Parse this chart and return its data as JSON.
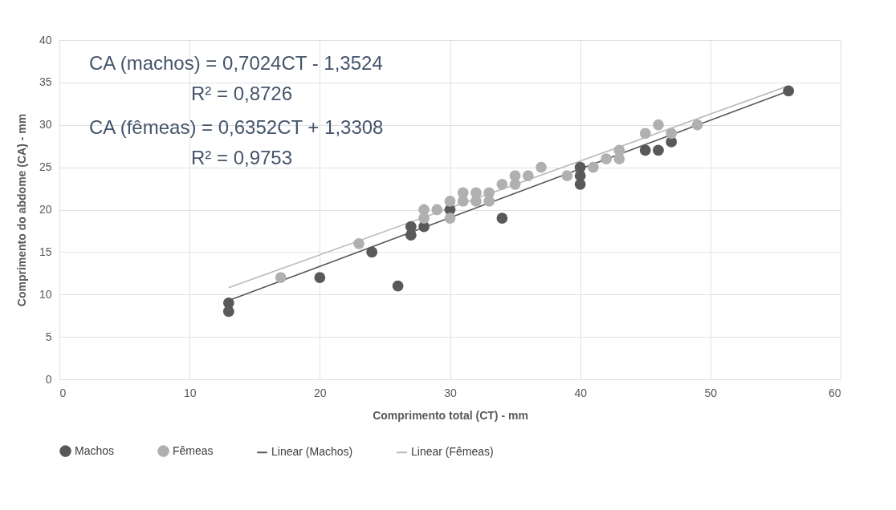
{
  "chart_data": {
    "type": "scatter",
    "xlabel": "Comprimento total (CT) - mm",
    "ylabel": "Comprimento do abdome (CA) - mm",
    "xlim": [
      0,
      60
    ],
    "xticks": [
      0,
      10,
      20,
      30,
      40,
      50,
      60
    ],
    "ylim": [
      0,
      40
    ],
    "yticks": [
      0,
      5,
      10,
      15,
      20,
      25,
      30,
      35,
      40
    ],
    "grid": true,
    "legend": "bottom",
    "annotations": [
      "CA (machos) = 0,7024CT - 1,3524",
      "R² = 0,8726",
      "CA (fêmeas) = 0,6352CT + 1,3308",
      "R² = 0,9753"
    ],
    "series": [
      {
        "name": "Machos",
        "type": "scatter",
        "marker": "circle",
        "color": "#595959",
        "x": [
          13,
          13,
          20,
          24,
          26,
          27,
          27,
          28,
          30,
          34,
          40,
          40,
          40,
          45,
          46,
          47,
          56
        ],
        "values": [
          8,
          9,
          12,
          15,
          11,
          17,
          18,
          18,
          20,
          19,
          23,
          24,
          25,
          27,
          27,
          28,
          34
        ]
      },
      {
        "name": "Fêmeas",
        "type": "scatter",
        "marker": "circle",
        "color": "#b0b0b0",
        "x": [
          17,
          23,
          28,
          28,
          29,
          30,
          30,
          31,
          31,
          32,
          32,
          33,
          33,
          34,
          35,
          35,
          36,
          37,
          39,
          41,
          42,
          43,
          43,
          45,
          46,
          47,
          49
        ],
        "values": [
          12,
          16,
          19,
          20,
          20,
          19,
          21,
          21,
          22,
          21,
          22,
          21,
          22,
          23,
          23,
          24,
          24,
          25,
          24,
          25,
          26,
          26,
          27,
          29,
          30,
          29,
          30
        ]
      },
      {
        "name": "Linear (Machos)",
        "type": "line",
        "marker": "none",
        "line_style": "solid",
        "color": "#595959",
        "x": [
          13,
          56
        ],
        "values": [
          9.3,
          34
        ]
      },
      {
        "name": "Linear (Fêmeas)",
        "type": "line",
        "marker": "none",
        "line_style": "solid",
        "color": "#b8b8b8",
        "x": [
          13,
          56
        ],
        "values": [
          10.8,
          34.6
        ]
      }
    ]
  }
}
